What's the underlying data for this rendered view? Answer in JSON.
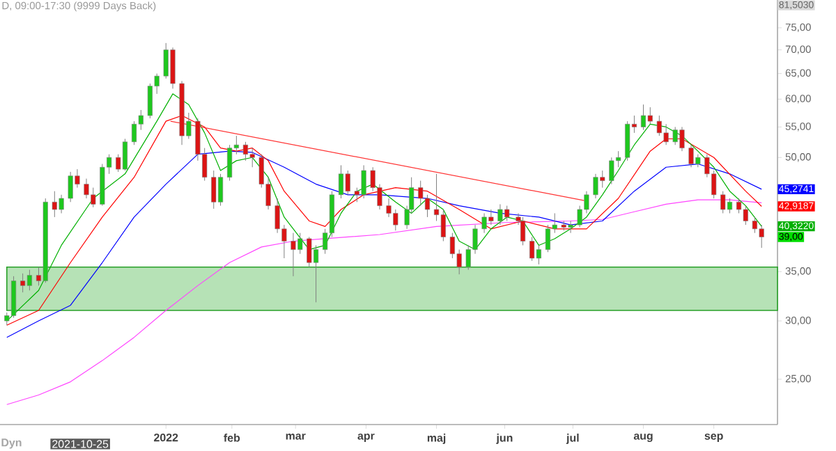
{
  "chart_data": {
    "type": "candlestick",
    "title": "D, 09:00-17:30 (9999 Days Back)",
    "x": [
      "2021-10-25",
      "2021-10-28",
      "2021-11-01",
      "2021-11-04",
      "2021-11-08",
      "2021-11-11",
      "2021-11-15",
      "2021-11-18",
      "2021-11-22",
      "2021-11-25",
      "2021-11-29",
      "2021-12-02",
      "2021-12-06",
      "2021-12-09",
      "2021-12-13",
      "2021-12-16",
      "2021-12-20",
      "2021-12-23",
      "2021-12-27",
      "2021-12-30",
      "2022-01-03",
      "2022-01-06",
      "2022-01-10",
      "2022-01-13",
      "2022-01-17",
      "2022-01-20",
      "2022-01-24",
      "2022-01-27",
      "2022-01-31",
      "2022-02-03",
      "2022-02-07",
      "2022-02-10",
      "2022-02-14",
      "2022-02-17",
      "2022-02-21",
      "2022-02-24",
      "2022-02-28",
      "2022-03-03",
      "2022-03-07",
      "2022-03-10",
      "2022-03-14",
      "2022-03-17",
      "2022-03-21",
      "2022-03-24",
      "2022-03-28",
      "2022-03-31",
      "2022-04-04",
      "2022-04-07",
      "2022-04-11",
      "2022-04-14",
      "2022-04-19",
      "2022-04-21",
      "2022-04-25",
      "2022-04-28",
      "2022-05-02",
      "2022-05-05",
      "2022-05-09",
      "2022-05-12",
      "2022-05-16",
      "2022-05-19",
      "2022-05-23",
      "2022-05-26",
      "2022-05-30",
      "2022-06-02",
      "2022-06-07",
      "2022-06-09",
      "2022-06-13",
      "2022-06-16",
      "2022-06-20",
      "2022-06-23",
      "2022-06-27",
      "2022-06-30",
      "2022-07-04",
      "2022-07-07",
      "2022-07-11",
      "2022-07-14",
      "2022-07-18",
      "2022-07-21",
      "2022-07-25",
      "2022-07-28",
      "2022-08-01",
      "2022-08-04",
      "2022-08-08",
      "2022-08-11",
      "2022-08-15",
      "2022-08-18",
      "2022-08-22",
      "2022-08-25",
      "2022-08-29",
      "2022-09-01",
      "2022-09-05",
      "2022-09-08",
      "2022-09-12",
      "2022-09-15",
      "2022-09-19",
      "2022-09-22"
    ],
    "ohlc": [
      [
        30,
        30.8,
        29.6,
        30.5
      ],
      [
        30.5,
        34.5,
        30.3,
        34
      ],
      [
        34,
        34.8,
        32.8,
        33.5
      ],
      [
        33.5,
        35.2,
        33,
        34.6
      ],
      [
        34.6,
        35.5,
        33.5,
        34
      ],
      [
        34,
        44,
        33.8,
        43.5
      ],
      [
        43.5,
        45,
        41.5,
        42.5
      ],
      [
        42.5,
        44.5,
        42,
        44
      ],
      [
        44,
        47.8,
        43.5,
        47.2
      ],
      [
        47.2,
        48.2,
        45.5,
        46
      ],
      [
        46,
        46.8,
        44,
        44.5
      ],
      [
        44.5,
        45.5,
        42.8,
        43.2
      ],
      [
        43.2,
        49,
        43,
        48.5
      ],
      [
        48.5,
        50.5,
        47.5,
        50
      ],
      [
        50,
        50.5,
        47.8,
        48.2
      ],
      [
        48.2,
        53,
        48,
        52.5
      ],
      [
        52.5,
        56,
        52,
        55.5
      ],
      [
        55.5,
        58,
        54.5,
        57
      ],
      [
        57,
        63,
        56.5,
        62.5
      ],
      [
        62.5,
        65,
        61,
        64.5
      ],
      [
        64.5,
        71.5,
        64,
        70
      ],
      [
        70,
        70.5,
        62,
        63
      ],
      [
        63,
        63.5,
        52,
        53.5
      ],
      [
        53.5,
        57.5,
        53,
        56
      ],
      [
        56,
        56.5,
        49.5,
        50.5
      ],
      [
        50.5,
        51.5,
        46.5,
        47
      ],
      [
        47,
        48,
        42.6,
        43.5
      ],
      [
        43.5,
        47.5,
        43,
        47
      ],
      [
        47,
        52,
        46.5,
        51.5
      ],
      [
        51.5,
        53.5,
        50.5,
        52
      ],
      [
        52,
        52.5,
        49.5,
        50.5
      ],
      [
        50.5,
        51.5,
        48.5,
        50
      ],
      [
        50,
        50.5,
        45.5,
        46
      ],
      [
        46,
        47,
        42.5,
        43
      ],
      [
        43,
        44,
        39.5,
        40
      ],
      [
        40,
        40.5,
        36.5,
        38.5
      ],
      [
        38.5,
        39.5,
        34.5,
        37.5
      ],
      [
        37.5,
        39.5,
        37,
        38.8
      ],
      [
        38.8,
        39,
        35.5,
        36
      ],
      [
        36,
        38,
        31.8,
        37.5
      ],
      [
        37.5,
        40,
        37,
        39.5
      ],
      [
        39.5,
        45,
        39,
        44.5
      ],
      [
        44.5,
        48.8,
        44,
        47.5
      ],
      [
        47.5,
        48,
        44.5,
        45
      ],
      [
        45,
        45.5,
        43.5,
        44.5
      ],
      [
        44.5,
        48.8,
        44,
        48
      ],
      [
        48,
        48.5,
        45,
        45.5
      ],
      [
        45.5,
        46,
        42.5,
        43
      ],
      [
        43,
        44,
        41.5,
        42
      ],
      [
        42,
        42.5,
        39.8,
        40.5
      ],
      [
        40.5,
        43,
        40,
        42.5
      ],
      [
        42.5,
        47,
        42,
        45.5
      ],
      [
        45.5,
        46.5,
        43,
        44
      ],
      [
        44,
        44.5,
        41.5,
        42.5
      ],
      [
        42.5,
        47.5,
        41,
        41.8
      ],
      [
        41.8,
        42.5,
        38.5,
        39
      ],
      [
        39,
        39.5,
        36.5,
        37
      ],
      [
        37,
        37.5,
        34.7,
        35.5
      ],
      [
        35.5,
        38,
        35.2,
        37.5
      ],
      [
        37.5,
        40.5,
        37,
        40
      ],
      [
        40,
        42,
        39.5,
        41.5
      ],
      [
        41.5,
        42.5,
        40.5,
        41
      ],
      [
        41,
        43.2,
        40.5,
        42.5
      ],
      [
        42.5,
        43,
        41,
        41.5
      ],
      [
        41.5,
        42,
        40.5,
        41
      ],
      [
        41,
        41.5,
        38,
        38.5
      ],
      [
        38.5,
        39,
        36.2,
        36.5
      ],
      [
        36.5,
        38,
        35.8,
        37.5
      ],
      [
        37.5,
        40.5,
        37.2,
        40
      ],
      [
        40,
        42,
        39.5,
        40.5
      ],
      [
        40.5,
        41,
        39.8,
        40.2
      ],
      [
        40.2,
        41,
        39.5,
        40.5
      ],
      [
        40.5,
        43,
        40.2,
        42.5
      ],
      [
        42.5,
        45,
        42,
        44.5
      ],
      [
        44.5,
        47.5,
        44,
        47
      ],
      [
        47,
        48,
        45.5,
        46.5
      ],
      [
        46.5,
        50,
        46,
        49.5
      ],
      [
        49.5,
        51,
        48.5,
        50
      ],
      [
        50,
        56,
        49.5,
        55.5
      ],
      [
        55.5,
        57,
        54,
        55
      ],
      [
        55,
        59,
        54.5,
        57
      ],
      [
        57,
        58.5,
        55.5,
        56
      ],
      [
        56,
        57,
        53.5,
        54
      ],
      [
        54,
        55.5,
        52,
        52.5
      ],
      [
        52.5,
        55,
        52,
        54.5
      ],
      [
        54.5,
        55,
        51,
        51.5
      ],
      [
        51.5,
        52,
        48.5,
        49
      ],
      [
        49,
        50.5,
        48.5,
        50
      ],
      [
        50,
        50.5,
        47,
        47.5
      ],
      [
        47.5,
        48,
        44,
        44.5
      ],
      [
        44.5,
        45,
        42,
        42.5
      ],
      [
        42.5,
        44,
        42,
        43.5
      ],
      [
        43.5,
        44,
        42,
        42.5
      ],
      [
        42.5,
        43,
        40.5,
        41
      ],
      [
        41,
        41.5,
        39.5,
        40
      ],
      [
        40,
        40.5,
        37.7,
        39
      ]
    ],
    "series": [
      {
        "type": "line",
        "color": "#ff44ff",
        "x": [
          "2021-10-25",
          "2021-11-08",
          "2021-11-22",
          "2021-12-06",
          "2021-12-20",
          "2022-01-03",
          "2022-01-17",
          "2022-01-31",
          "2022-02-14",
          "2022-02-28",
          "2022-03-14",
          "2022-04-07",
          "2022-05-02",
          "2022-06-01",
          "2022-06-30",
          "2022-07-14",
          "2022-07-28",
          "2022-08-11",
          "2022-08-25",
          "2022-09-08",
          "2022-09-22"
        ],
        "values": [
          23.1,
          23.8,
          24.8,
          26.5,
          28.5,
          31,
          33.5,
          36,
          37.8,
          38.5,
          38.8,
          39.3,
          40.3,
          40.8,
          41,
          41.2,
          42.2,
          43.2,
          43.8,
          43.8,
          43.4
        ]
      },
      {
        "type": "line",
        "color": "#0000ff",
        "x": [
          "2021-10-25",
          "2021-11-08",
          "2021-11-22",
          "2021-12-06",
          "2021-12-20",
          "2022-01-03",
          "2022-01-17",
          "2022-01-31",
          "2022-02-10",
          "2022-02-24",
          "2022-03-10",
          "2022-03-24",
          "2022-04-07",
          "2022-04-28",
          "2022-05-12",
          "2022-05-30",
          "2022-06-16",
          "2022-06-30",
          "2022-07-14",
          "2022-07-28",
          "2022-08-11",
          "2022-08-25",
          "2022-09-08",
          "2022-09-22"
        ],
        "values": [
          28.5,
          30,
          31.5,
          36,
          41.5,
          46,
          50.5,
          51,
          50.8,
          48.5,
          46,
          44.5,
          44.5,
          44,
          43,
          42,
          41.5,
          40.5,
          41,
          45,
          48.5,
          49,
          47.5,
          45.2741
        ]
      },
      {
        "type": "line",
        "color": "#ff0000",
        "x": [
          "2021-10-25",
          "2021-11-08",
          "2021-11-22",
          "2021-12-06",
          "2021-12-20",
          "2022-01-03",
          "2022-01-10",
          "2022-01-20",
          "2022-01-27",
          "2022-02-03",
          "2022-02-10",
          "2022-02-17",
          "2022-02-24",
          "2022-03-07",
          "2022-03-14",
          "2022-03-21",
          "2022-03-31",
          "2022-04-14",
          "2022-04-28",
          "2022-05-12",
          "2022-05-26",
          "2022-06-09",
          "2022-06-23",
          "2022-07-07",
          "2022-07-21",
          "2022-08-04",
          "2022-08-11",
          "2022-08-18",
          "2022-09-01",
          "2022-09-15",
          "2022-09-22"
        ],
        "values": [
          29.6,
          31,
          36,
          41.5,
          47,
          56,
          57,
          55,
          51.5,
          51,
          51.5,
          49.5,
          45,
          41,
          40.3,
          42.5,
          44.5,
          45.5,
          45,
          42.5,
          40,
          41,
          40,
          40,
          44,
          51,
          53,
          53,
          50,
          45,
          42.9187
        ]
      },
      {
        "type": "line",
        "color": "#00b000",
        "x": [
          "2021-10-25",
          "2021-11-08",
          "2021-11-18",
          "2021-12-02",
          "2021-12-16",
          "2021-12-30",
          "2022-01-06",
          "2022-01-13",
          "2022-01-20",
          "2022-01-27",
          "2022-02-03",
          "2022-02-10",
          "2022-02-17",
          "2022-02-24",
          "2022-03-07",
          "2022-03-14",
          "2022-03-21",
          "2022-03-28",
          "2022-04-04",
          "2022-04-14",
          "2022-04-21",
          "2022-04-28",
          "2022-05-05",
          "2022-05-12",
          "2022-05-19",
          "2022-05-26",
          "2022-06-02",
          "2022-06-09",
          "2022-06-16",
          "2022-06-23",
          "2022-06-30",
          "2022-07-07",
          "2022-07-14",
          "2022-07-21",
          "2022-07-28",
          "2022-08-04",
          "2022-08-11",
          "2022-08-18",
          "2022-08-25",
          "2022-09-01",
          "2022-09-08",
          "2022-09-15",
          "2022-09-22"
        ],
        "values": [
          30,
          33,
          38,
          44,
          47.5,
          56,
          61,
          59,
          54,
          48,
          49.5,
          50,
          47,
          41.5,
          37.5,
          38,
          42,
          45,
          46,
          43.5,
          42,
          44,
          42.5,
          38.5,
          37.5,
          40,
          41.5,
          41,
          38,
          38.8,
          40,
          41.5,
          44.5,
          48,
          52,
          55.5,
          55,
          53.5,
          51,
          48.5,
          45,
          43,
          40.322
        ]
      },
      {
        "type": "line",
        "color": "#ff3333",
        "x": [
          "2022-01-05",
          "2022-07-06"
        ],
        "values": [
          56,
          43.7
        ]
      }
    ],
    "bands": [
      {
        "axis": "y",
        "from": 31,
        "to": 35.5,
        "color": "#b6e2b6"
      }
    ],
    "log": "y",
    "xlim": [
      "2021-10-22",
      "2022-09-29"
    ],
    "xticks": [
      {
        "value": "2022-01-03",
        "label": "2022"
      },
      {
        "value": "2022-02-01",
        "label": "feb"
      },
      {
        "value": "2022-03-01",
        "label": "mar"
      },
      {
        "value": "2022-04-01",
        "label": "apr"
      },
      {
        "value": "2022-05-02",
        "label": "maj"
      },
      {
        "value": "2022-06-01",
        "label": "jun"
      },
      {
        "value": "2022-07-01",
        "label": "jul"
      },
      {
        "value": "2022-08-01",
        "label": "aug"
      },
      {
        "value": "2022-09-01",
        "label": "sep"
      }
    ],
    "ylim": [
      21.7,
      81.8
    ],
    "yticks": [
      {
        "value": 25,
        "label": "25,00"
      },
      {
        "value": 30,
        "label": "30,00"
      },
      {
        "value": 35,
        "label": "35,00"
      },
      {
        "value": 50,
        "label": "50,00"
      },
      {
        "value": 55,
        "label": "55,00"
      },
      {
        "value": 60,
        "label": "60,00"
      },
      {
        "value": 65,
        "label": "65,00"
      },
      {
        "value": 70,
        "label": "70,00"
      },
      {
        "value": 75,
        "label": "75,00"
      }
    ],
    "annotations": [
      "81,5030",
      "Dyn",
      "2021-10-25",
      {
        "text": "45,2741",
        "x": "2022-09-22",
        "y": 45.2741
      },
      {
        "text": "42,9187",
        "x": "2022-09-22",
        "y": 42.9187
      },
      {
        "text": "40,3220",
        "x": "2022-09-22",
        "y": 40.322
      },
      {
        "text": "39,00",
        "x": "2022-09-22",
        "y": 39
      }
    ]
  }
}
